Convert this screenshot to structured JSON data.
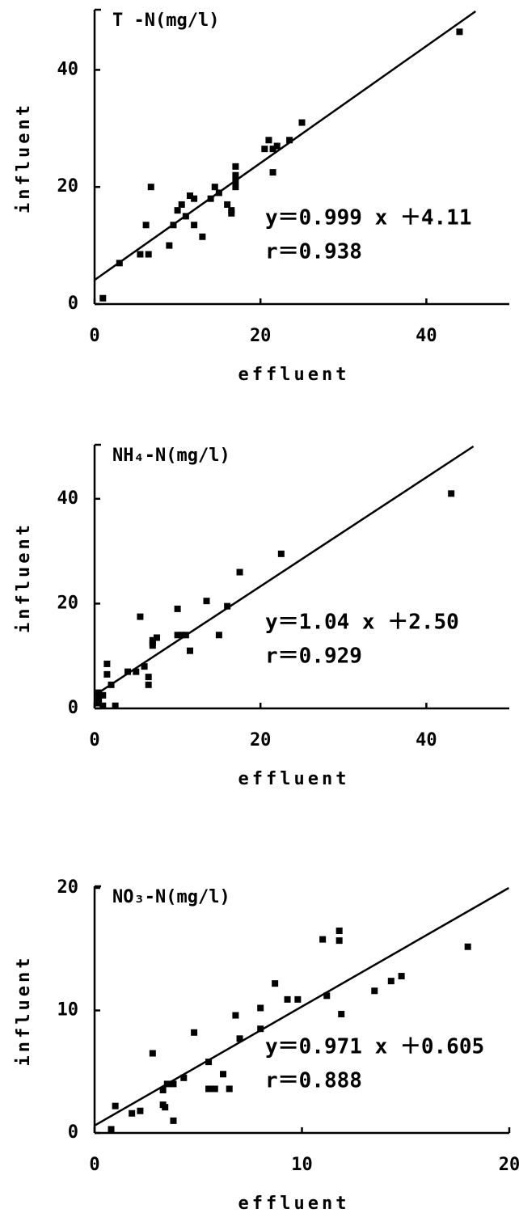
{
  "chart_data": [
    {
      "type": "scatter",
      "title": "T -N(mg/l)",
      "xlabel": "effluent",
      "ylabel": "influent",
      "color": "#000000",
      "x": [
        1,
        3,
        5.5,
        6.5,
        6.2,
        6.8,
        9,
        9.5,
        10,
        10.5,
        11,
        11.5,
        12,
        12,
        13,
        14,
        14.5,
        15,
        16,
        16.5,
        16.5,
        17,
        17,
        17,
        17,
        20.5,
        21,
        21.5,
        21.5,
        22,
        23.5,
        25,
        44
      ],
      "values": [
        1,
        7,
        8.5,
        8.5,
        13.5,
        20,
        10,
        13.5,
        16,
        17,
        15,
        18.5,
        13.5,
        18,
        11.5,
        18,
        20,
        19,
        17,
        16,
        15.5,
        20,
        21,
        22,
        23.5,
        26.5,
        28,
        26.5,
        22.5,
        27,
        28,
        31,
        46.5
      ],
      "xlim": [
        0,
        50
      ],
      "ylim": [
        0,
        50
      ],
      "xticks": [
        0,
        20,
        40
      ],
      "yticks": [
        0,
        20,
        40
      ],
      "annotations": [
        "y＝0.999 x ＋4.11",
        "r＝0.938"
      ],
      "fit": {
        "slope": 0.999,
        "intercept": 4.11
      }
    },
    {
      "type": "scatter",
      "title": "NH₄-N(mg/l)",
      "xlabel": "effluent",
      "ylabel": "influent",
      "color": "#000000",
      "x": [
        0.5,
        0.5,
        0.5,
        1,
        1,
        1.5,
        1.5,
        2,
        2.5,
        4,
        5,
        5.5,
        6,
        6.5,
        6.5,
        7,
        7,
        7,
        7.5,
        10,
        10,
        10.5,
        11,
        11.5,
        13.5,
        15,
        16,
        17.5,
        22.5,
        43
      ],
      "values": [
        1,
        2,
        3,
        0.5,
        2.5,
        8.5,
        6.5,
        4.5,
        0.5,
        7,
        7,
        17.5,
        8,
        6,
        4.5,
        12,
        12.5,
        13,
        13.5,
        19,
        14,
        14,
        14,
        11,
        20.5,
        14,
        19.5,
        26,
        29.5,
        41
      ],
      "xlim": [
        0,
        50
      ],
      "ylim": [
        0,
        50
      ],
      "xticks": [
        0,
        20,
        40
      ],
      "yticks": [
        0,
        20,
        40
      ],
      "annotations": [
        "y＝1.04 x ＋2.50",
        "r＝0.929"
      ],
      "fit": {
        "slope": 1.04,
        "intercept": 2.5
      }
    },
    {
      "type": "scatter",
      "title": "NO₃-N(mg/l)",
      "xlabel": "effluent",
      "ylabel": "influent",
      "color": "#000000",
      "x": [
        0.8,
        1,
        1.8,
        2.2,
        2.8,
        3.3,
        3.3,
        3.4,
        3.5,
        3.8,
        3.8,
        4.3,
        4.8,
        5.5,
        5.5,
        5.8,
        6.2,
        6.5,
        6.8,
        7,
        8,
        8,
        8.7,
        9.3,
        9.8,
        11,
        11.2,
        11.8,
        11.8,
        11.9,
        13.5,
        14.3,
        14.8,
        18
      ],
      "values": [
        0.3,
        2.2,
        1.6,
        1.8,
        6.5,
        2.3,
        3.5,
        2.1,
        4,
        1,
        4,
        4.5,
        8.2,
        3.6,
        5.8,
        3.6,
        4.8,
        3.6,
        9.6,
        7.7,
        10.2,
        8.5,
        12.2,
        10.9,
        10.9,
        15.8,
        11.2,
        15.7,
        16.5,
        9.7,
        11.6,
        12.4,
        12.8,
        15.2
      ],
      "xlim": [
        0,
        20
      ],
      "ylim": [
        0,
        20
      ],
      "xticks": [
        0,
        10,
        20
      ],
      "yticks": [
        0,
        10,
        20
      ],
      "annotations": [
        "y＝0.971 x ＋0.605",
        "r＝0.888"
      ],
      "fit": {
        "slope": 0.971,
        "intercept": 0.605
      }
    }
  ]
}
